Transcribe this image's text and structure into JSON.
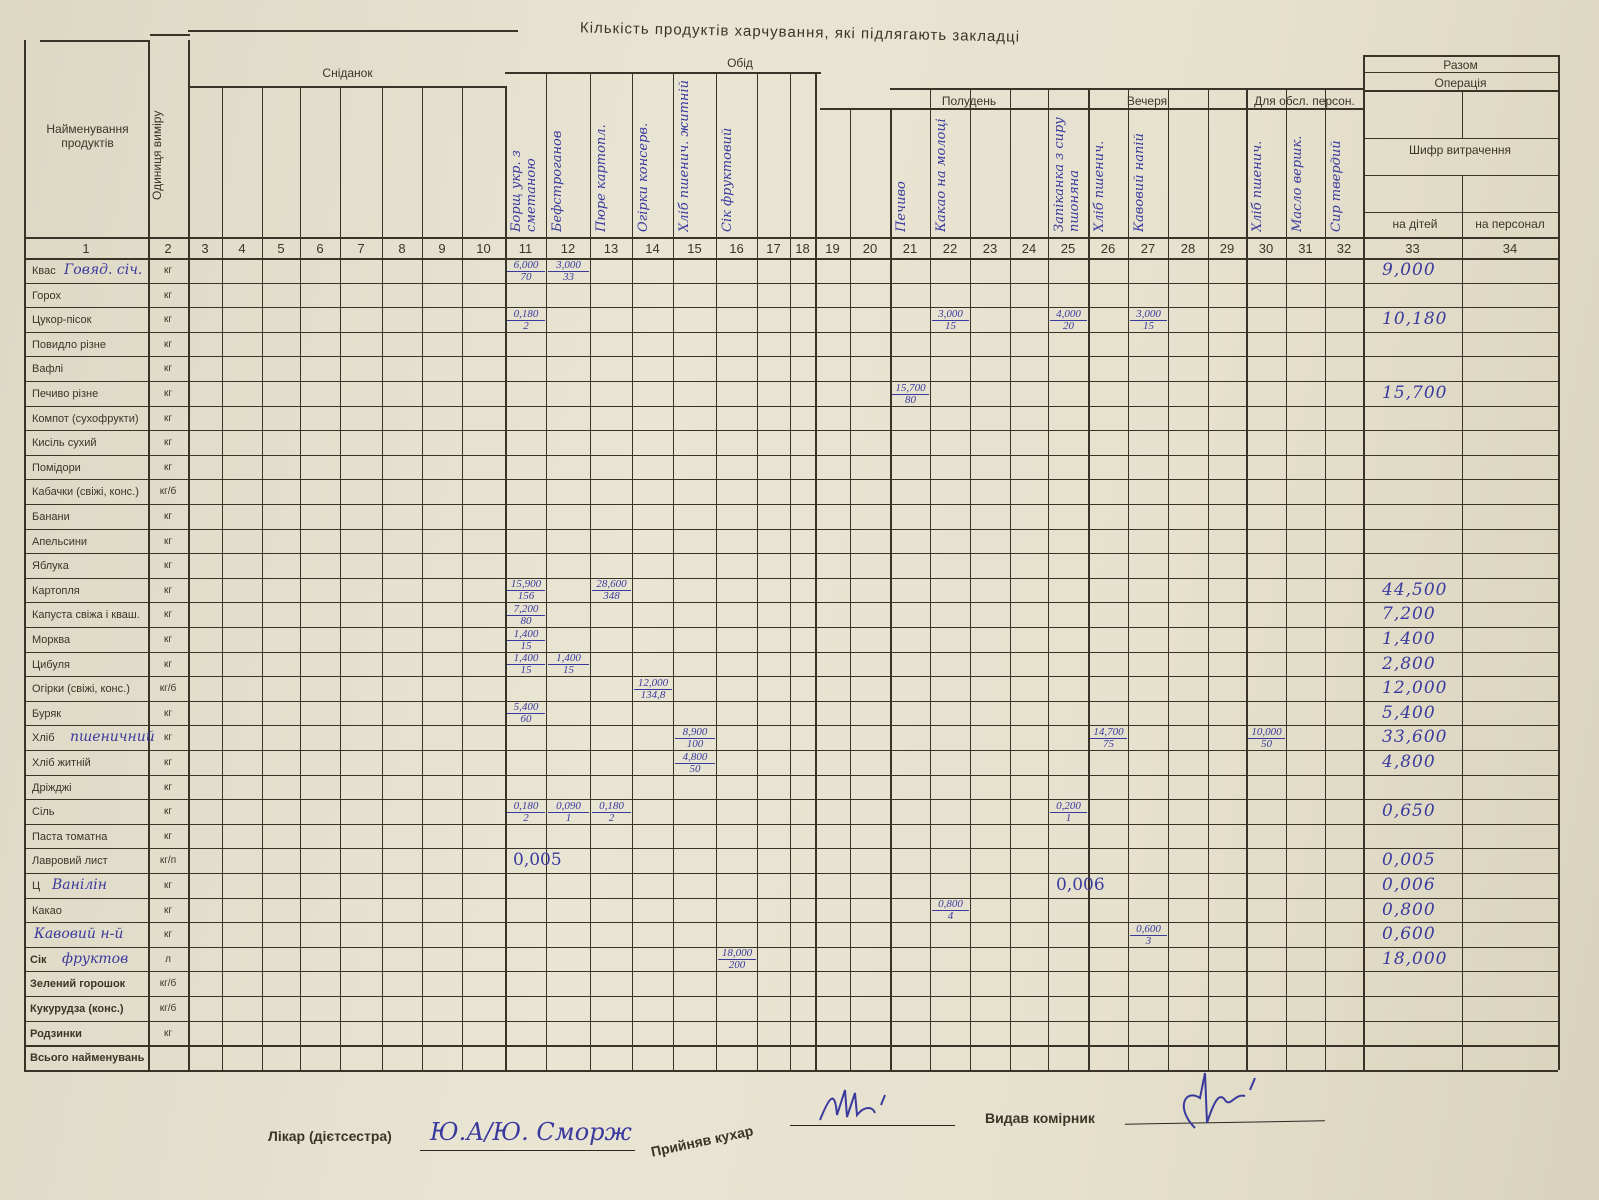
{
  "form": {
    "title": "Кількість продуктів харчування, які підлягають закладці",
    "name_header": "Найменування продуктів",
    "unit_header": "Одиниця виміру",
    "groups": {
      "breakfast": "Сніданок",
      "lunch": "Обід",
      "snack": "Полудень",
      "dinner": "Вечеря",
      "staff": "Для обсл. персон.",
      "total": "Разом",
      "operation": "Операція",
      "expense_code": "Шифр витрачення",
      "for_children": "на дітей",
      "for_staff": "на персонал"
    },
    "column_numbers": [
      "1",
      "2",
      "3",
      "4",
      "5",
      "6",
      "7",
      "8",
      "9",
      "10",
      "11",
      "12",
      "13",
      "14",
      "15",
      "16",
      "17",
      "18",
      "19",
      "20",
      "21",
      "22",
      "23",
      "24",
      "25",
      "26",
      "27",
      "28",
      "29",
      "30",
      "31",
      "32",
      "33",
      "34"
    ],
    "dishes": [
      {
        "col": 11,
        "name": "Борщ укр. з сметаною"
      },
      {
        "col": 12,
        "name": "Бефстроганов"
      },
      {
        "col": 13,
        "name": "Пюре картопл."
      },
      {
        "col": 14,
        "name": "Огірки консерв."
      },
      {
        "col": 15,
        "name": "Хліб пшенич. житній"
      },
      {
        "col": 16,
        "name": "Сік фруктовий"
      },
      {
        "col": 21,
        "name": "Печиво"
      },
      {
        "col": 22,
        "name": "Какао на молоці"
      },
      {
        "col": 25,
        "name": "Запіканка з сиру пшоняна"
      },
      {
        "col": 26,
        "name": "Хліб пшенич."
      },
      {
        "col": 27,
        "name": "Кавовий напій"
      },
      {
        "col": 30,
        "name": "Хліб пшенич."
      },
      {
        "col": 31,
        "name": "Масло вершк."
      },
      {
        "col": 32,
        "name": "Сир твердий"
      }
    ],
    "rows": [
      {
        "name": "Квас",
        "handwritten": "Говяд. січ.",
        "unit": "кг",
        "total": "9,000"
      },
      {
        "name": "Горох",
        "unit": "кг",
        "total": ""
      },
      {
        "name": "Цукор-пісок",
        "unit": "кг",
        "total": "10,180"
      },
      {
        "name": "Повидло різне",
        "unit": "кг",
        "total": ""
      },
      {
        "name": "Вафлі",
        "unit": "кг",
        "total": ""
      },
      {
        "name": "Печиво різне",
        "unit": "кг",
        "total": "15,700"
      },
      {
        "name": "Компот (сухофрукти)",
        "unit": "кг",
        "total": ""
      },
      {
        "name": "Кисіль сухий",
        "unit": "кг",
        "total": ""
      },
      {
        "name": "Помідори",
        "unit": "кг",
        "total": ""
      },
      {
        "name": "Кабачки (свіжі, конс.)",
        "unit": "кг/б",
        "total": ""
      },
      {
        "name": "Банани",
        "unit": "кг",
        "total": ""
      },
      {
        "name": "Апельсини",
        "unit": "кг",
        "total": ""
      },
      {
        "name": "Яблука",
        "unit": "кг",
        "total": ""
      },
      {
        "name": "Картопля",
        "unit": "кг",
        "total": "44,500"
      },
      {
        "name": "Капуста свіжа і кваш.",
        "unit": "кг",
        "total": "7,200"
      },
      {
        "name": "Морква",
        "unit": "кг",
        "total": "1,400"
      },
      {
        "name": "Цибуля",
        "unit": "кг",
        "total": "2,800"
      },
      {
        "name": "Огірки (свіжі, конс.)",
        "unit": "кг/б",
        "total": "12,000"
      },
      {
        "name": "Буряк",
        "unit": "кг",
        "total": "5,400"
      },
      {
        "name": "Хліб",
        "handwritten": "пшеничний",
        "unit": "кг",
        "total": "33,600"
      },
      {
        "name": "Хліб житній",
        "unit": "кг",
        "total": "4,800"
      },
      {
        "name": "Дріжджі",
        "unit": "кг",
        "total": ""
      },
      {
        "name": "Сіль",
        "unit": "кг",
        "total": "0,650"
      },
      {
        "name": "Паста томатна",
        "unit": "кг",
        "total": ""
      },
      {
        "name": "Лавровий лист",
        "unit": "кг/п",
        "total": "0,005"
      },
      {
        "name": "Ц",
        "handwritten": "Ванілін",
        "unit": "кг",
        "total": "0,006"
      },
      {
        "name": "Какао",
        "unit": "кг",
        "total": "0,800"
      },
      {
        "name": "",
        "handwritten": "Кавовий н-й",
        "unit": "кг",
        "total": "0,600"
      },
      {
        "name": "Сік",
        "handwritten": "фруктов",
        "unit": "л",
        "total": "18,000"
      },
      {
        "name": "Зелений горошок",
        "unit": "кг/б",
        "total": ""
      },
      {
        "name": "Кукурудза (конс.)",
        "unit": "кг/б",
        "total": ""
      },
      {
        "name": "Родзинки",
        "unit": "кг",
        "total": ""
      },
      {
        "name": "Всього найменувань",
        "unit": "",
        "total": ""
      }
    ],
    "entries": [
      {
        "row": 0,
        "col": 11,
        "qty": "6,000",
        "portions": "70"
      },
      {
        "row": 0,
        "col": 12,
        "qty": "3,000",
        "portions": "33"
      },
      {
        "row": 2,
        "col": 11,
        "qty": "0,180",
        "portions": "2"
      },
      {
        "row": 2,
        "col": 22,
        "qty": "3,000",
        "portions": "15"
      },
      {
        "row": 2,
        "col": 25,
        "qty": "4,000",
        "portions": "20"
      },
      {
        "row": 2,
        "col": 27,
        "qty": "3,000",
        "portions": "15"
      },
      {
        "row": 5,
        "col": 21,
        "qty": "15,700",
        "portions": "80"
      },
      {
        "row": 13,
        "col": 11,
        "qty": "15,900",
        "portions": "156"
      },
      {
        "row": 13,
        "col": 13,
        "qty": "28,600",
        "portions": "348"
      },
      {
        "row": 14,
        "col": 11,
        "qty": "7,200",
        "portions": "80"
      },
      {
        "row": 15,
        "col": 11,
        "qty": "1,400",
        "portions": "15"
      },
      {
        "row": 16,
        "col": 11,
        "qty": "1,400",
        "portions": "15"
      },
      {
        "row": 16,
        "col": 12,
        "qty": "1,400",
        "portions": "15"
      },
      {
        "row": 17,
        "col": 14,
        "qty": "12,000",
        "portions": "134,8"
      },
      {
        "row": 18,
        "col": 11,
        "qty": "5,400",
        "portions": "60"
      },
      {
        "row": 19,
        "col": 15,
        "qty": "8,900",
        "portions": "100"
      },
      {
        "row": 19,
        "col": 26,
        "qty": "14,700",
        "portions": "75"
      },
      {
        "row": 19,
        "col": 30,
        "qty": "10,000",
        "portions": "50"
      },
      {
        "row": 20,
        "col": 15,
        "qty": "4,800",
        "portions": "50"
      },
      {
        "row": 22,
        "col": 11,
        "qty": "0,180",
        "portions": "2"
      },
      {
        "row": 22,
        "col": 12,
        "qty": "0,090",
        "portions": "1"
      },
      {
        "row": 22,
        "col": 13,
        "qty": "0,180",
        "portions": "2"
      },
      {
        "row": 22,
        "col": 25,
        "qty": "0,200",
        "portions": "1"
      },
      {
        "row": 24,
        "col": 11,
        "qty": "0,005",
        "portions": ""
      },
      {
        "row": 25,
        "col": 25,
        "qty": "0,006",
        "portions": ""
      },
      {
        "row": 26,
        "col": 22,
        "qty": "0,800",
        "portions": "4"
      },
      {
        "row": 27,
        "col": 27,
        "qty": "0,600",
        "portions": "3"
      },
      {
        "row": 28,
        "col": 16,
        "qty": "18,000",
        "portions": "200"
      }
    ],
    "signatures": {
      "doctor_label": "Лікар (дієтсестра)",
      "doctor_signature": "Ю.А/Ю. Сморж",
      "cook_label": "Прийняв кухар",
      "storekeeper_label": "Видав комірник"
    },
    "colors": {
      "paper": "#e6e1cd",
      "print": "#3a3327",
      "ink": "#3a3a9e"
    }
  }
}
